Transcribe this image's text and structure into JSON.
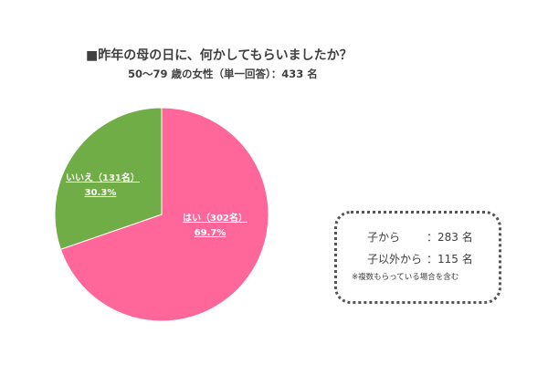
{
  "chart_data": {
    "type": "pie",
    "title": "■昨年の母の日に、何かしてもらいましたか？",
    "subtitle": "50～79 歳の女性（単一回答）：433 名",
    "slices": [
      {
        "label": "はい（302名）",
        "pct_label": "69.7%",
        "value": 69.7,
        "color": "#ff6699"
      },
      {
        "label": "いいえ（131名）",
        "pct_label": "30.3%",
        "value": 30.3,
        "color": "#70ad47"
      }
    ],
    "start": "12 o'clock clockwise"
  },
  "note": {
    "row1_label": "子から",
    "row1_value": "：283 名",
    "row2_label": "子以外から",
    "row2_value": "：115 名",
    "footnote": "※複数もらっている場合を含む"
  }
}
